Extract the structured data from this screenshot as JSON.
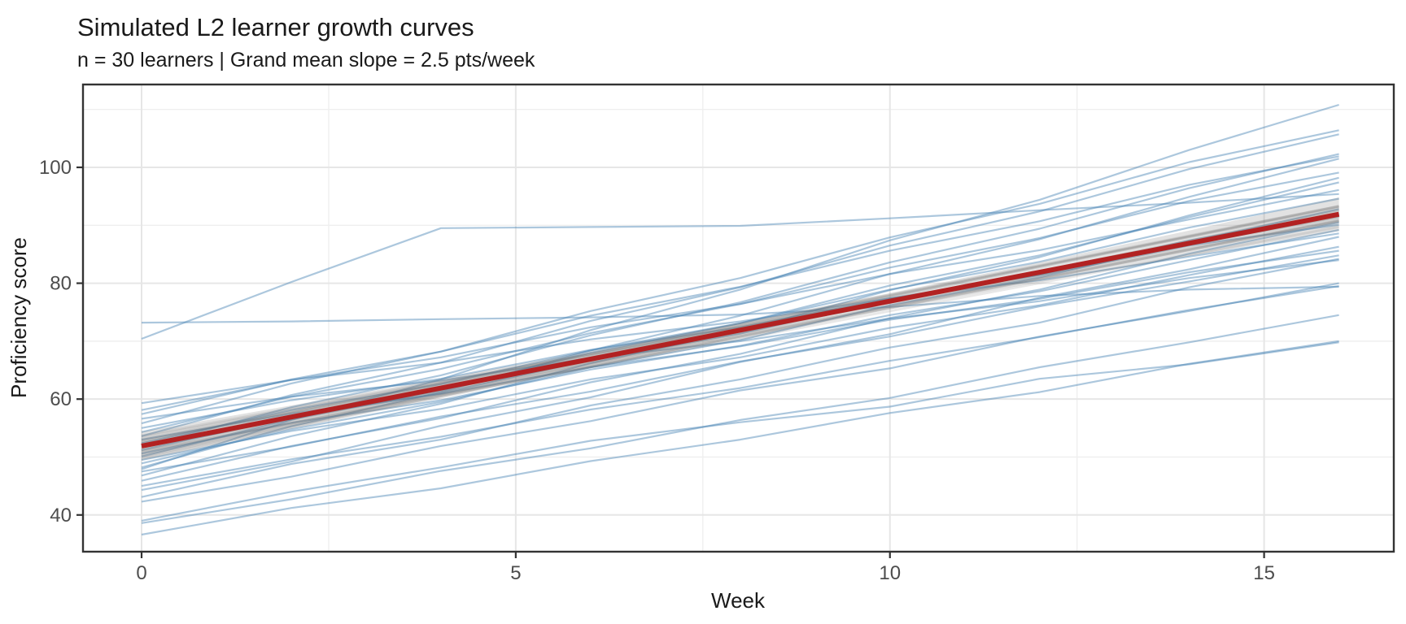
{
  "chart_data": {
    "type": "line",
    "title": "Simulated L2 learner growth curves",
    "subtitle": "n = 30 learners | Grand mean slope = 2.5 pts/week",
    "xlabel": "Week",
    "ylabel": "Proficiency score",
    "stats": {
      "n_learners": 30,
      "grand_mean_slope_pts_per_week": 2.5
    },
    "axes": {
      "xlim": [
        -0.783,
        16.733
      ],
      "ylim": [
        33.66,
        114.3
      ],
      "x_ticks": [
        0,
        5,
        10,
        15
      ],
      "y_ticks": [
        40,
        60,
        80,
        100
      ],
      "x_minor": [
        2.5,
        7.5,
        12.5
      ],
      "y_minor": [
        50,
        70,
        90,
        110
      ],
      "grid": true,
      "legend": "none"
    },
    "weeks": [
      0,
      2,
      4,
      6,
      8,
      10,
      12,
      14,
      16
    ],
    "learners": [
      [
        51.2,
        56.9,
        61.0,
        66.8,
        71.3,
        77.2,
        81.5,
        87.4,
        92.0
      ],
      [
        70.4,
        80.2,
        89.5,
        89.7,
        89.9,
        91.2,
        92.6,
        93.9,
        95.4
      ],
      [
        73.2,
        73.4,
        73.8,
        74.1,
        74.6,
        75.9,
        77.8,
        78.9,
        79.4
      ],
      [
        36.6,
        41.2,
        44.6,
        49.3,
        53.0,
        57.6,
        61.2,
        66.1,
        70.0
      ],
      [
        38.6,
        42.7,
        47.6,
        51.5,
        56.4,
        60.2,
        65.5,
        69.8,
        74.5
      ],
      [
        39.0,
        44.0,
        48.2,
        52.8,
        56.0,
        58.7,
        63.5,
        66.0,
        69.8
      ],
      [
        42.3,
        46.6,
        51.9,
        56.2,
        61.5,
        65.3,
        70.8,
        75.2,
        80.0
      ],
      [
        43.1,
        48.8,
        53.0,
        58.9,
        63.4,
        68.9,
        73.2,
        79.3,
        84.2
      ],
      [
        44.3,
        49.2,
        55.4,
        60.3,
        66.4,
        71.2,
        77.5,
        82.4,
        88.0
      ],
      [
        45.0,
        49.6,
        53.5,
        58.2,
        61.9,
        66.6,
        70.7,
        75.4,
        79.5
      ],
      [
        45.9,
        51.9,
        56.7,
        62.9,
        67.8,
        74.0,
        78.9,
        85.1,
        90.5
      ],
      [
        46.8,
        53.6,
        59.2,
        66.2,
        71.8,
        78.8,
        84.5,
        91.7,
        98.2
      ],
      [
        47.5,
        51.8,
        57.0,
        61.3,
        66.5,
        70.8,
        76.0,
        80.3,
        84.8
      ],
      [
        48.2,
        55.3,
        61.2,
        68.4,
        74.4,
        81.6,
        87.6,
        94.9,
        101.5
      ],
      [
        48.9,
        54.8,
        59.5,
        65.5,
        70.2,
        76.2,
        81.0,
        87.1,
        92.8
      ],
      [
        49.5,
        54.5,
        58.3,
        63.4,
        67.2,
        72.3,
        76.2,
        81.4,
        86.3
      ],
      [
        50.1,
        56.5,
        61.5,
        68.0,
        73.1,
        79.6,
        84.8,
        91.4,
        97.4
      ],
      [
        50.6,
        55.9,
        59.8,
        65.1,
        69.2,
        74.5,
        78.6,
        84.0,
        89.2
      ],
      [
        51.8,
        58.6,
        64.1,
        71.0,
        76.7,
        83.6,
        89.4,
        96.4,
        102.3
      ],
      [
        52.4,
        58.1,
        62.6,
        68.4,
        73.1,
        78.9,
        83.7,
        89.6,
        94.6
      ],
      [
        53.0,
        57.5,
        60.9,
        65.5,
        69.1,
        73.7,
        77.3,
        81.9,
        85.6
      ],
      [
        53.6,
        60.7,
        66.3,
        73.5,
        79.3,
        86.5,
        92.4,
        99.7,
        105.7
      ],
      [
        54.3,
        60.4,
        65.2,
        71.4,
        76.4,
        82.7,
        87.8,
        94.2,
        99.1
      ],
      [
        55.0,
        59.8,
        63.5,
        68.5,
        72.4,
        77.4,
        81.4,
        86.5,
        90.1
      ],
      [
        55.8,
        62.7,
        68.2,
        75.2,
        80.9,
        87.9,
        93.7,
        100.9,
        106.4
      ],
      [
        56.6,
        60.4,
        63.2,
        67.1,
        70.0,
        73.9,
        76.9,
        80.9,
        84.0
      ],
      [
        57.4,
        63.4,
        68.2,
        74.4,
        79.4,
        85.6,
        90.7,
        97.0,
        101.9
      ],
      [
        58.1,
        63.3,
        67.2,
        72.4,
        76.4,
        81.6,
        85.7,
        91.0,
        96.1
      ],
      [
        59.3,
        63.3,
        66.3,
        70.3,
        73.4,
        77.4,
        80.5,
        84.6,
        88.6
      ],
      [
        47.9,
        56.4,
        63.4,
        71.9,
        78.9,
        87.4,
        94.4,
        103.0,
        110.8
      ]
    ],
    "mean_line": {
      "x": [
        0,
        16
      ],
      "y": [
        51.9,
        91.9
      ]
    },
    "ribbon": {
      "lower": [
        49.4,
        54.9,
        60.3,
        65.5,
        70.6,
        75.5,
        80.2,
        84.7,
        89.0
      ],
      "upper": [
        54.4,
        58.9,
        63.5,
        68.3,
        73.2,
        78.3,
        83.6,
        89.1,
        94.8
      ]
    },
    "draws": [
      [
        53.4,
        2.38
      ],
      [
        50.6,
        2.62
      ],
      [
        52.3,
        2.46
      ],
      [
        51.2,
        2.56
      ],
      [
        53.0,
        2.41
      ],
      [
        50.1,
        2.66
      ],
      [
        52.7,
        2.52
      ],
      [
        51.6,
        2.44
      ],
      [
        52.0,
        2.58
      ],
      [
        50.9,
        2.49
      ],
      [
        53.7,
        2.35
      ],
      [
        49.8,
        2.63
      ],
      [
        52.5,
        2.55
      ],
      [
        51.0,
        2.42
      ],
      [
        51.5,
        2.61
      ],
      [
        52.9,
        2.37
      ],
      [
        50.4,
        2.53
      ],
      [
        51.9,
        2.5
      ]
    ],
    "colors": {
      "learner_line": "rgba(70,130,180,0.45)",
      "mean_line": "#b22222",
      "ribbon_fill": "rgba(125,125,125,0.22)",
      "draw_line": "rgba(115,115,115,0.16)",
      "grid_major": "#e6e6e6",
      "grid_minor": "#efefef",
      "panel_border": "#333333",
      "tick_mark": "#333333",
      "tick_label": "#4d4d4d",
      "title_text": "#1a1a1a"
    }
  }
}
